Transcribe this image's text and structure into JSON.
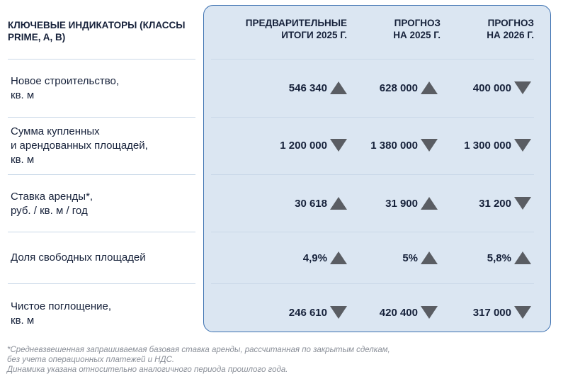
{
  "header": {
    "label": "КЛЮЧЕВЫЕ ИНДИКАТОРЫ\n(КЛАССЫ PRIME, A, B)",
    "columns": [
      "ПРЕДВАРИТЕЛЬНЫЕ\nИТОГИ 2025 Г.",
      "ПРОГНОЗ\nНА 2025 Г.",
      "ПРОГНОЗ\nНА 2026 Г."
    ]
  },
  "rows": [
    {
      "label": "Новое строительство,\nкв. м",
      "cells": [
        {
          "value": "546 340",
          "trend": "up"
        },
        {
          "value": "628 000",
          "trend": "up"
        },
        {
          "value": "400 000",
          "trend": "down"
        }
      ]
    },
    {
      "label": "Сумма купленных\nи арендованных площадей,\nкв. м",
      "cells": [
        {
          "value": "1 200 000",
          "trend": "down"
        },
        {
          "value": "1 380 000",
          "trend": "down"
        },
        {
          "value": "1 300 000",
          "trend": "down"
        }
      ]
    },
    {
      "label": "Ставка аренды*,\nруб. / кв. м / год",
      "cells": [
        {
          "value": "30 618",
          "trend": "up"
        },
        {
          "value": "31 900",
          "trend": "up"
        },
        {
          "value": "31 200",
          "trend": "down"
        }
      ]
    },
    {
      "label": "Доля свободных площадей",
      "cells": [
        {
          "value": "4,9%",
          "trend": "up"
        },
        {
          "value": "5%",
          "trend": "up"
        },
        {
          "value": "5,8%",
          "trend": "up"
        }
      ]
    },
    {
      "label": "Чистое поглощение,\nкв. м",
      "cells": [
        {
          "value": "246 610",
          "trend": "down"
        },
        {
          "value": "420 400",
          "trend": "down"
        },
        {
          "value": "317 000",
          "trend": "down"
        }
      ]
    }
  ],
  "footnote": "*Средневзвешенная запрашиваемая базовая ставка аренды, рассчитанная по закрытым сделкам,\nбез учета операционных платежей и НДС.\nДинамика указана относительно аналогичного периода прошлого года.",
  "colors": {
    "panel_bg": "#dbe6f2",
    "panel_border": "#3a6fb0",
    "arrow": "#5a5d63"
  }
}
